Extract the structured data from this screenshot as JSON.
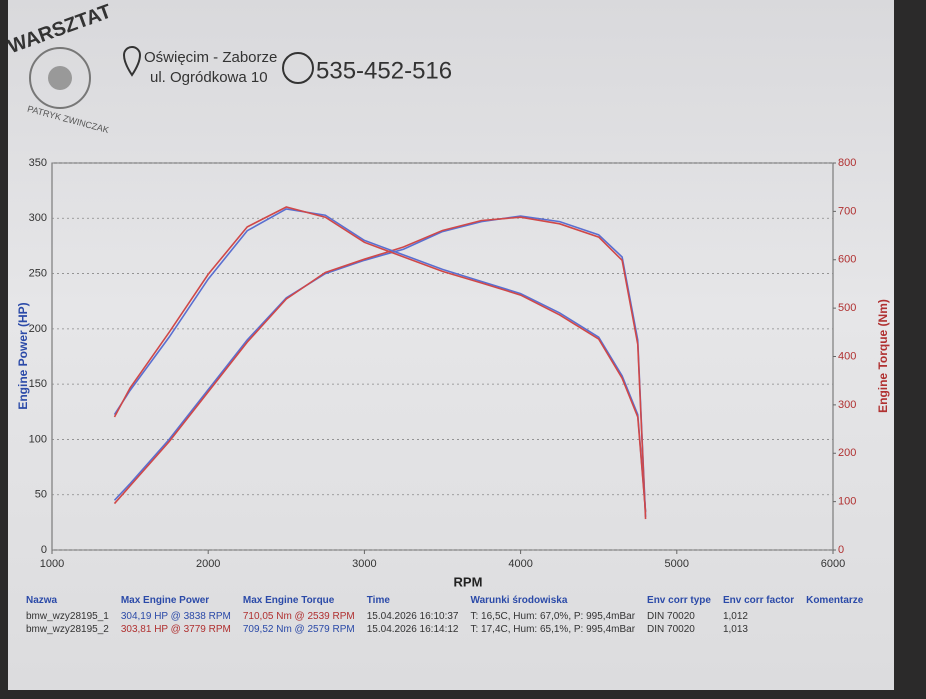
{
  "header": {
    "brand": "WARSZTAT",
    "owner": "PATRYK ZWINCZAK",
    "address_line1": "Oświęcim - Zaborze",
    "address_line2": "ul. Ogródkowa 10",
    "phone": "535-452-516"
  },
  "chart_data": {
    "type": "line",
    "xlabel": "RPM",
    "ylabel": "Engine Power (HP)",
    "y2label": "Engine Torque (Nm)",
    "xlim": [
      1000,
      6000
    ],
    "xticks": [
      1000,
      2000,
      3000,
      4000,
      5000,
      6000
    ],
    "ylim": [
      0,
      350
    ],
    "yticks": [
      0,
      50,
      100,
      150,
      200,
      250,
      300,
      350
    ],
    "y2lim": [
      0,
      800
    ],
    "y2ticks": [
      0,
      100,
      200,
      300,
      400,
      500,
      600,
      700,
      800
    ],
    "grid": true,
    "x": [
      1400,
      1500,
      1750,
      2000,
      2250,
      2500,
      2750,
      3000,
      3250,
      3500,
      3750,
      4000,
      4250,
      4500,
      4650,
      4750,
      4800
    ],
    "series": [
      {
        "color": "#5a6fd0",
        "values": [
          45,
          60,
          100,
          145,
          190,
          228,
          250,
          262,
          272,
          288,
          297,
          302,
          297,
          285,
          265,
          190,
          30
        ]
      },
      {
        "color": "#d04848",
        "values": [
          42,
          58,
          98,
          143,
          188,
          227,
          251,
          263,
          274,
          289,
          298,
          301,
          295,
          283,
          262,
          186,
          28
        ]
      },
      {
        "color": "#5a6fd0",
        "axis": "y2",
        "values": [
          280,
          330,
          440,
          560,
          660,
          705,
          692,
          640,
          610,
          580,
          555,
          530,
          490,
          440,
          360,
          280,
          80
        ]
      },
      {
        "color": "#d04848",
        "axis": "y2",
        "values": [
          275,
          335,
          450,
          570,
          668,
          709,
          688,
          636,
          606,
          576,
          552,
          527,
          486,
          436,
          355,
          275,
          78
        ]
      }
    ]
  },
  "table": {
    "header": [
      "Nazwa",
      "Max Engine Power",
      "Max Engine Torque",
      "Time",
      "Warunki środowiska",
      "Env corr type",
      "Env corr factor",
      "Komentarze"
    ],
    "rows": [
      [
        "bmw_wzy28195_1",
        "304,19 HP @ 3838 RPM",
        "710,05 Nm @ 2539 RPM",
        "15.04.2026 16:10:37",
        "T: 16,5C, Hum: 67,0%, P: 995,4mBar",
        "DIN 70020",
        "1,012",
        ""
      ],
      [
        "bmw_wzy28195_2",
        "303,81 HP @ 3779 RPM",
        "709,52 Nm @ 2579 RPM",
        "15.04.2026 16:14:12",
        "T: 17,4C, Hum: 65,1%, P: 995,4mBar",
        "DIN 70020",
        "1,013",
        ""
      ]
    ]
  }
}
